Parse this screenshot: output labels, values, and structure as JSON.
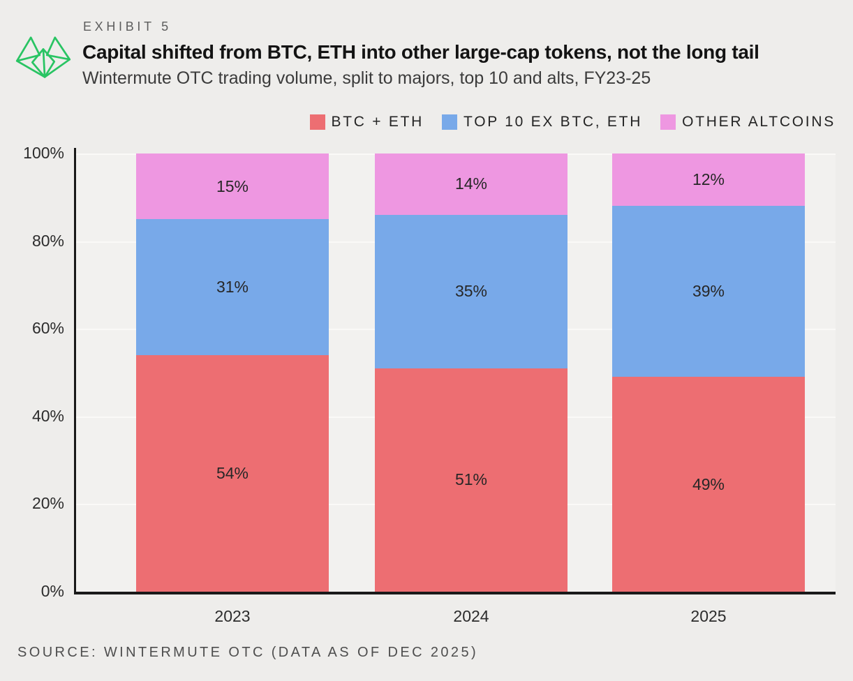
{
  "header": {
    "exhibit": "EXHIBIT 5",
    "title": "Capital shifted from BTC, ETH into other large-cap tokens, not the long tail",
    "subtitle": "Wintermute OTC trading volume, split to majors, top 10 and alts, FY23-25"
  },
  "logo": {
    "name": "wintermute-logo",
    "color": "#29c463"
  },
  "chart_data": {
    "type": "bar",
    "stacked": true,
    "categories": [
      "2023",
      "2024",
      "2025"
    ],
    "series": [
      {
        "name": "BTC + ETH",
        "color": "#ed6e72",
        "values": [
          54,
          51,
          49
        ]
      },
      {
        "name": "TOP 10 EX BTC, ETH",
        "color": "#78a9e9",
        "values": [
          31,
          35,
          39
        ]
      },
      {
        "name": "OTHER ALTCOINS",
        "color": "#ee97e1",
        "values": [
          15,
          14,
          12
        ]
      }
    ],
    "value_suffix": "%",
    "ylim": [
      0,
      100
    ],
    "yticks": [
      100,
      80,
      60,
      40,
      20,
      0
    ],
    "ytick_suffix": "%",
    "grid": true,
    "legend_position": "top-right"
  },
  "source": "SOURCE: WINTERMUTE OTC (DATA AS OF DEC 2025)"
}
